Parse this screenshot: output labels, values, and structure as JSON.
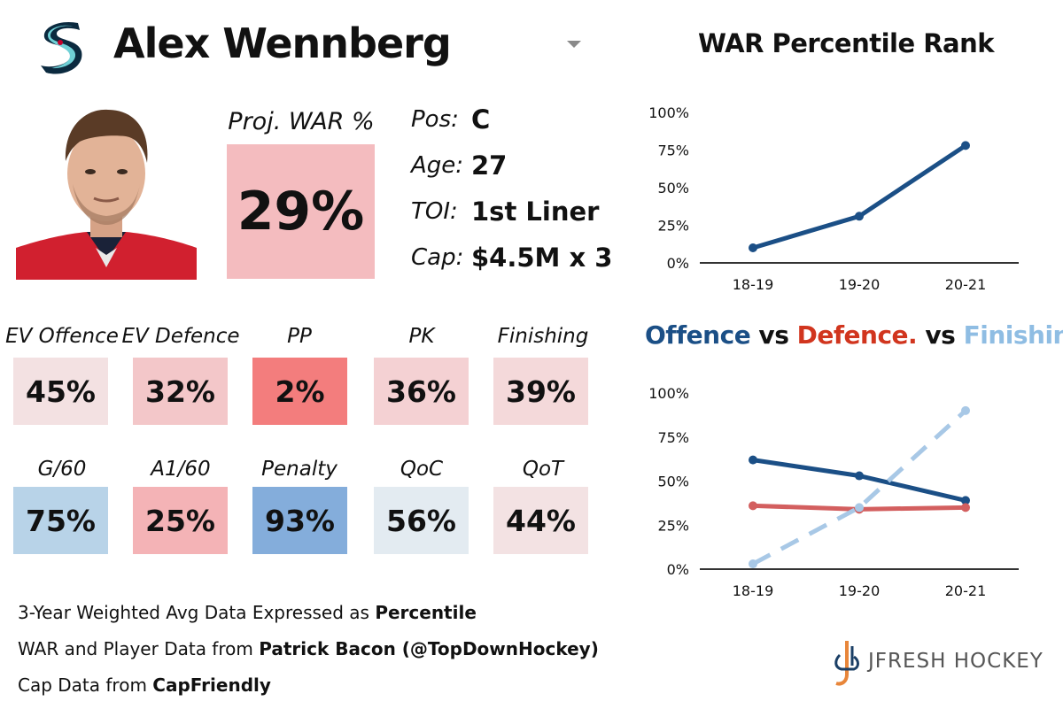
{
  "player": {
    "name": "Alex Wennberg",
    "team_logo_icon": "kraken-s-logo-icon",
    "photo_icon": "player-headshot"
  },
  "proj_war": {
    "label": "Proj. WAR %",
    "value": "29%",
    "color": "#f4bcbf"
  },
  "info": [
    {
      "key": "Pos:",
      "value": "C"
    },
    {
      "key": "Age:",
      "value": "27"
    },
    {
      "key": "TOI:",
      "value": "1st Liner"
    },
    {
      "key": "Cap:",
      "value": "$4.5M x 3"
    }
  ],
  "stats_row1": [
    {
      "label": "EV Offence",
      "value": "45%",
      "color": "#f3e1e2"
    },
    {
      "label": "EV Defence",
      "value": "32%",
      "color": "#f3c7c9"
    },
    {
      "label": "PP",
      "value": "2%",
      "color": "#f37d7d"
    },
    {
      "label": "PK",
      "value": "36%",
      "color": "#f4d1d3"
    },
    {
      "label": "Finishing",
      "value": "39%",
      "color": "#f4d9da"
    }
  ],
  "stats_row2": [
    {
      "label": "G/60",
      "value": "75%",
      "color": "#b8d3e8"
    },
    {
      "label": "A1/60",
      "value": "25%",
      "color": "#f4b3b6"
    },
    {
      "label": "Penalty",
      "value": "93%",
      "color": "#84addb"
    },
    {
      "label": "QoC",
      "value": "56%",
      "color": "#e3ebf1"
    },
    {
      "label": "QoT",
      "value": "44%",
      "color": "#f3e2e3"
    }
  ],
  "footer": [
    {
      "text": "3-Year Weighted Avg Data Expressed as ",
      "bold": "Percentile"
    },
    {
      "text": "WAR and Player Data from ",
      "bold": "Patrick Bacon (@TopDownHockey)"
    },
    {
      "text": "Cap Data from ",
      "bold": "CapFriendly"
    }
  ],
  "brand": {
    "text": "JFRESH HOCKEY"
  },
  "chart_titles": {
    "war": "WAR Percentile Rank",
    "cmp_offence": "Offence",
    "cmp_vs1": " vs ",
    "cmp_defence": "Defence.",
    "cmp_vs2": " vs ",
    "cmp_finishing": "Finishing"
  },
  "chart_data": [
    {
      "type": "line",
      "title": "WAR Percentile Rank",
      "categories": [
        "18-19",
        "19-20",
        "20-21"
      ],
      "yticks": [
        "0%",
        "25%",
        "50%",
        "75%",
        "100%"
      ],
      "ylim": [
        0,
        100
      ],
      "series": [
        {
          "values": [
            10,
            31,
            78
          ],
          "color": "#1b4f86",
          "dashed": false
        }
      ]
    },
    {
      "type": "line",
      "title": "Offence vs Defence. vs Finishing",
      "categories": [
        "18-19",
        "19-20",
        "20-21"
      ],
      "yticks": [
        "0%",
        "25%",
        "50%",
        "75%",
        "100%"
      ],
      "ylim": [
        0,
        100
      ],
      "series": [
        {
          "name": "Offence",
          "values": [
            62,
            53,
            39
          ],
          "color": "#1b4f86",
          "dashed": false
        },
        {
          "name": "Defence.",
          "values": [
            36,
            34,
            35
          ],
          "color": "#d35f5f",
          "dashed": false
        },
        {
          "name": "Finishing",
          "values": [
            3,
            35,
            90
          ],
          "color": "#a8c8e6",
          "dashed": true
        }
      ]
    }
  ]
}
